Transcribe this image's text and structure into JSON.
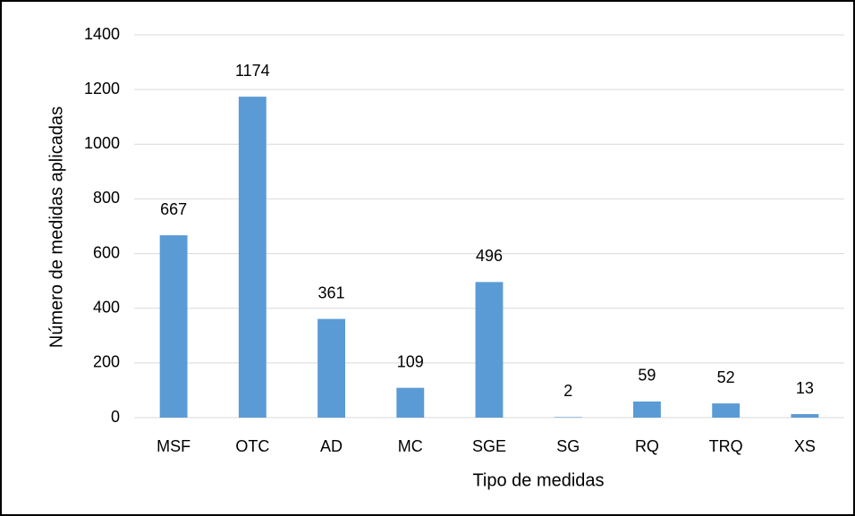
{
  "chart_data": {
    "type": "bar",
    "x_label": "Tipo de medidas",
    "y_label": "Número de medidas aplicadas",
    "categories": [
      "MSF",
      "OTC",
      "AD",
      "MC",
      "SGE",
      "SG",
      "RQ",
      "TRQ",
      "XS"
    ],
    "values": [
      667,
      1174,
      361,
      109,
      496,
      2,
      59,
      52,
      13
    ],
    "color": "#5b9bd5",
    "ylim": [
      0,
      1400
    ],
    "yticks": [
      0,
      200,
      400,
      600,
      800,
      1000,
      1200,
      1400
    ],
    "grid": true
  }
}
